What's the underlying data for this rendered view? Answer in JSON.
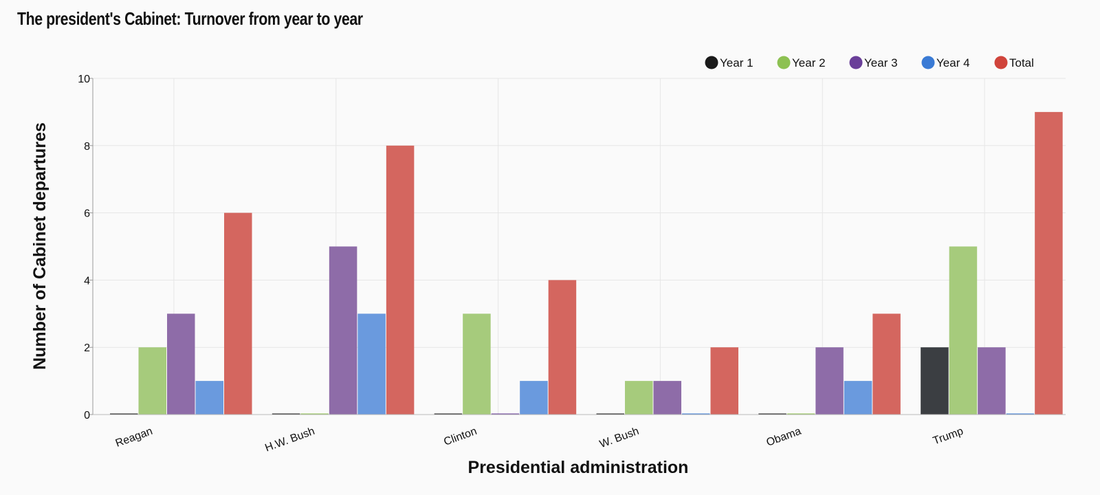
{
  "chart_data": {
    "type": "bar",
    "title": "The president's Cabinet: Turnover from year to year",
    "xlabel": "Presidential administration",
    "ylabel": "Number of Cabinet departures",
    "categories": [
      "Reagan",
      "H.W. Bush",
      "Clinton",
      "W. Bush",
      "Obama",
      "Trump"
    ],
    "series": [
      {
        "name": "Year 1",
        "color": "#1a1a1a",
        "bar_color": "#3b3e42",
        "values": [
          0,
          0,
          0,
          0,
          0,
          2
        ]
      },
      {
        "name": "Year 2",
        "color": "#8dc152",
        "bar_color": "#a6cb7c",
        "values": [
          2,
          0,
          3,
          1,
          0,
          5
        ]
      },
      {
        "name": "Year 3",
        "color": "#6a3f99",
        "bar_color": "#8e6ca8",
        "values": [
          3,
          5,
          0,
          1,
          2,
          2
        ]
      },
      {
        "name": "Year 4",
        "color": "#3a7bd5",
        "bar_color": "#6a9ade",
        "values": [
          1,
          3,
          1,
          0,
          1,
          0
        ]
      },
      {
        "name": "Total",
        "color": "#d0443b",
        "bar_color": "#d4665f",
        "values": [
          6,
          8,
          4,
          2,
          3,
          9
        ]
      }
    ],
    "ylim": [
      0,
      10
    ],
    "yticks": [
      0,
      2,
      4,
      6,
      8,
      10
    ],
    "grid": true,
    "legend_position": "top-right"
  }
}
